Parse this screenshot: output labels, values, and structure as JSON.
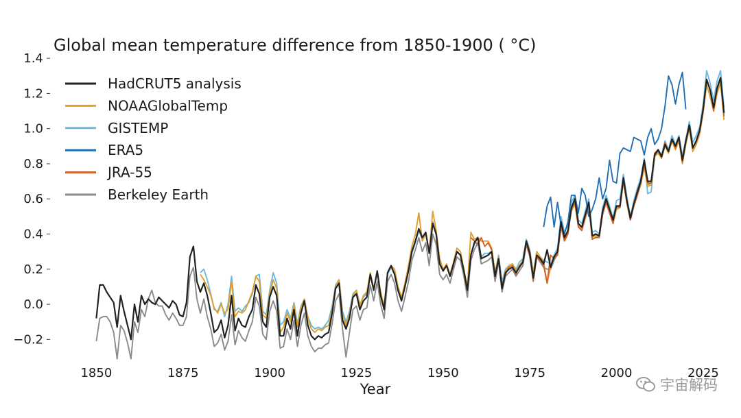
{
  "chart_data": {
    "type": "line",
    "title": "Global mean temperature difference from 1850-1900 ( °C)",
    "xlabel": "Year",
    "ylabel": "",
    "xlim": [
      1843,
      2027
    ],
    "ylim": [
      -0.3,
      1.42
    ],
    "xticks": [
      1850,
      1875,
      1900,
      1925,
      1950,
      1975,
      2000,
      2025
    ],
    "yticks": [
      -0.2,
      0.0,
      0.2,
      0.4,
      0.6,
      0.8,
      1.0,
      1.2,
      1.4
    ],
    "ytick_labels": [
      "−0.2",
      "0.0",
      "0.2",
      "0.4",
      "0.6",
      "0.8",
      "1.0",
      "1.2",
      "1.4"
    ],
    "legend_position": "top-left",
    "series": [
      {
        "name": "HadCRUT5 analysis",
        "color": "#222222",
        "x_start": 1850,
        "values": [
          -0.08,
          0.11,
          0.11,
          0.07,
          0.04,
          0.01,
          -0.13,
          0.05,
          -0.04,
          -0.12,
          -0.2,
          0.0,
          -0.1,
          0.05,
          0.0,
          0.03,
          0.01,
          0.0,
          0.04,
          0.02,
          0.0,
          -0.02,
          0.02,
          0.0,
          -0.06,
          -0.07,
          0.01,
          0.27,
          0.33,
          0.13,
          0.07,
          0.12,
          0.05,
          -0.05,
          -0.16,
          -0.14,
          -0.09,
          -0.19,
          -0.12,
          0.05,
          -0.15,
          -0.08,
          -0.12,
          -0.13,
          -0.07,
          -0.03,
          0.11,
          0.06,
          -0.1,
          -0.13,
          0.04,
          0.1,
          0.05,
          -0.18,
          -0.18,
          -0.08,
          -0.14,
          -0.03,
          -0.18,
          -0.05,
          0.02,
          -0.12,
          -0.18,
          -0.2,
          -0.18,
          -0.19,
          -0.17,
          -0.16,
          -0.05,
          0.09,
          0.12,
          -0.09,
          -0.14,
          -0.08,
          0.04,
          0.06,
          -0.03,
          0.02,
          0.04,
          0.17,
          0.08,
          0.19,
          0.05,
          -0.03,
          0.18,
          0.22,
          0.17,
          0.08,
          0.02,
          0.1,
          0.19,
          0.3,
          0.36,
          0.43,
          0.38,
          0.41,
          0.29,
          0.46,
          0.4,
          0.23,
          0.19,
          0.22,
          0.16,
          0.23,
          0.3,
          0.28,
          0.19,
          0.08,
          0.28,
          0.35,
          0.38,
          0.26,
          0.27,
          0.28,
          0.3,
          0.16,
          0.26,
          0.09,
          0.18,
          0.2,
          0.21,
          0.18,
          0.21,
          0.24,
          0.36,
          0.29,
          0.15,
          0.28,
          0.26,
          0.23,
          0.31,
          0.21,
          0.27,
          0.3,
          0.47,
          0.38,
          0.42,
          0.55,
          0.6,
          0.46,
          0.44,
          0.51,
          0.58,
          0.39,
          0.4,
          0.39,
          0.53,
          0.6,
          0.54,
          0.48,
          0.56,
          0.56,
          0.72,
          0.59,
          0.49,
          0.57,
          0.64,
          0.7,
          0.82,
          0.7,
          0.7,
          0.85,
          0.88,
          0.84,
          0.91,
          0.87,
          0.94,
          0.9,
          0.95,
          0.82,
          0.93,
          1.02,
          0.89,
          0.93,
          0.99,
          1.11,
          1.28,
          1.22,
          1.12,
          1.23,
          1.29,
          1.09
        ]
      },
      {
        "name": "NOAAGlobalTemp",
        "color": "#e0a02a",
        "x_start": 1880,
        "values": [
          0.17,
          0.14,
          0.1,
          0.05,
          -0.02,
          -0.05,
          0.0,
          -0.05,
          -0.03,
          0.13,
          -0.07,
          -0.04,
          -0.05,
          -0.03,
          0.02,
          0.07,
          0.16,
          0.13,
          -0.06,
          -0.08,
          0.06,
          0.14,
          0.09,
          -0.16,
          -0.13,
          -0.05,
          -0.1,
          0.0,
          -0.13,
          -0.02,
          0.03,
          -0.08,
          -0.14,
          -0.16,
          -0.14,
          -0.15,
          -0.13,
          -0.12,
          -0.03,
          0.1,
          0.14,
          -0.06,
          -0.12,
          -0.06,
          0.05,
          0.08,
          -0.01,
          0.05,
          0.07,
          0.18,
          0.09,
          0.19,
          0.07,
          -0.01,
          0.18,
          0.22,
          0.2,
          0.1,
          0.04,
          0.12,
          0.22,
          0.33,
          0.4,
          0.52,
          0.36,
          0.4,
          0.3,
          0.53,
          0.42,
          0.26,
          0.2,
          0.23,
          0.17,
          0.24,
          0.32,
          0.3,
          0.2,
          0.1,
          0.41,
          0.37,
          0.38,
          0.36,
          0.36,
          0.36,
          0.32,
          0.18,
          0.27,
          0.1,
          0.19,
          0.22,
          0.23,
          0.19,
          0.22,
          0.25,
          0.36,
          0.3,
          0.17,
          0.3,
          0.27,
          0.24,
          0.12,
          0.21,
          0.26,
          0.29,
          0.45,
          0.37,
          0.41,
          0.53,
          0.57,
          0.45,
          0.43,
          0.5,
          0.56,
          0.38,
          0.39,
          0.38,
          0.52,
          0.58,
          0.52,
          0.46,
          0.54,
          0.55,
          0.7,
          0.57,
          0.48,
          0.56,
          0.62,
          0.68,
          0.78,
          0.67,
          0.68,
          0.84,
          0.86,
          0.83,
          0.9,
          0.86,
          0.93,
          0.88,
          0.93,
          0.8,
          0.91,
          1.0,
          0.87,
          0.91,
          0.97,
          1.09,
          1.25,
          1.18,
          1.1,
          1.2,
          1.26,
          1.05
        ]
      },
      {
        "name": "GISTEMP",
        "color": "#6bb8e0",
        "x_start": 1880,
        "values": [
          0.18,
          0.2,
          0.14,
          0.06,
          -0.03,
          -0.04,
          0.01,
          -0.07,
          0.0,
          0.16,
          -0.04,
          -0.02,
          -0.04,
          -0.01,
          0.01,
          0.06,
          0.16,
          0.17,
          -0.04,
          -0.06,
          0.08,
          0.18,
          0.12,
          -0.12,
          -0.1,
          -0.03,
          -0.08,
          0.01,
          -0.11,
          -0.01,
          0.03,
          -0.07,
          -0.12,
          -0.14,
          -0.13,
          -0.14,
          -0.12,
          -0.09,
          -0.01,
          0.11,
          0.14,
          -0.04,
          -0.1,
          -0.04,
          0.06,
          0.08,
          0.0,
          0.04,
          0.06,
          0.17,
          0.09,
          0.18,
          0.06,
          -0.02,
          0.17,
          0.21,
          0.17,
          0.08,
          0.02,
          0.1,
          0.19,
          0.29,
          0.35,
          0.42,
          0.37,
          0.41,
          0.29,
          0.47,
          0.4,
          0.23,
          0.19,
          0.22,
          0.16,
          0.23,
          0.3,
          0.28,
          0.19,
          0.08,
          0.28,
          0.34,
          0.38,
          0.27,
          0.29,
          0.29,
          0.3,
          0.18,
          0.28,
          0.13,
          0.2,
          0.22,
          0.23,
          0.2,
          0.24,
          0.26,
          0.37,
          0.31,
          0.18,
          0.3,
          0.27,
          0.25,
          0.24,
          0.23,
          0.28,
          0.32,
          0.5,
          0.41,
          0.45,
          0.58,
          0.62,
          0.48,
          0.46,
          0.53,
          0.6,
          0.41,
          0.42,
          0.4,
          0.55,
          0.62,
          0.56,
          0.49,
          0.59,
          0.6,
          0.74,
          0.61,
          0.5,
          0.59,
          0.66,
          0.72,
          0.83,
          0.63,
          0.64,
          0.84,
          0.88,
          0.85,
          0.93,
          0.88,
          0.96,
          0.91,
          0.96,
          0.84,
          0.94,
          1.04,
          0.92,
          0.96,
          1.01,
          1.14,
          1.33,
          1.26,
          1.16,
          1.27,
          1.33,
          1.12
        ]
      },
      {
        "name": "ERA5",
        "color": "#1f6fb5",
        "x_start": 1979,
        "values": [
          0.44,
          0.56,
          0.61,
          0.44,
          0.58,
          0.45,
          0.4,
          0.47,
          0.62,
          0.62,
          0.52,
          0.66,
          0.62,
          0.5,
          0.54,
          0.6,
          0.72,
          0.6,
          0.66,
          0.82,
          0.7,
          0.69,
          0.86,
          0.89,
          0.88,
          0.87,
          0.95,
          0.94,
          0.93,
          0.85,
          0.95,
          1.0,
          0.91,
          0.94,
          1.0,
          1.13,
          1.3,
          1.25,
          1.14,
          1.25,
          1.32,
          1.11
        ]
      },
      {
        "name": "JRA-55",
        "color": "#d0622a",
        "x_start": 1958,
        "values": [
          0.38,
          0.36,
          0.34,
          0.38,
          0.33,
          0.35,
          0.31,
          0.16,
          0.26,
          0.11,
          0.17,
          0.21,
          0.22,
          0.17,
          0.22,
          0.24,
          0.34,
          0.28,
          0.14,
          0.27,
          0.25,
          0.22,
          0.12,
          0.28,
          0.26,
          0.28,
          0.44,
          0.36,
          0.4,
          0.54,
          0.58,
          0.44,
          0.42,
          0.49,
          0.56,
          0.37,
          0.38,
          0.38,
          0.51,
          0.58,
          0.52,
          0.46,
          0.56,
          0.55,
          0.7,
          0.58,
          0.48,
          0.56,
          0.62,
          0.69,
          0.8,
          0.69,
          0.69,
          0.86,
          0.88,
          0.84,
          0.92,
          0.87,
          0.94,
          0.89,
          0.95,
          0.81,
          0.92,
          1.01,
          0.89,
          0.93,
          0.99,
          1.12,
          1.28,
          1.22,
          1.1,
          1.22,
          1.29,
          1.07
        ]
      },
      {
        "name": "Berkeley Earth",
        "color": "#8a8a8a",
        "x_start": 1850,
        "values": [
          -0.21,
          -0.08,
          -0.07,
          -0.07,
          -0.1,
          -0.16,
          -0.31,
          -0.12,
          -0.15,
          -0.22,
          -0.31,
          -0.1,
          -0.16,
          -0.03,
          -0.07,
          0.03,
          0.08,
          0.01,
          -0.01,
          -0.01,
          -0.06,
          -0.09,
          -0.05,
          -0.08,
          -0.12,
          -0.12,
          -0.07,
          0.16,
          0.21,
          0.03,
          -0.05,
          0.03,
          -0.07,
          -0.14,
          -0.24,
          -0.22,
          -0.17,
          -0.26,
          -0.21,
          -0.06,
          -0.23,
          -0.15,
          -0.19,
          -0.21,
          -0.15,
          -0.1,
          0.04,
          -0.01,
          -0.17,
          -0.2,
          -0.04,
          0.02,
          -0.04,
          -0.25,
          -0.24,
          -0.14,
          -0.2,
          -0.09,
          -0.24,
          -0.12,
          -0.05,
          -0.18,
          -0.24,
          -0.27,
          -0.25,
          -0.25,
          -0.23,
          -0.22,
          -0.11,
          0.02,
          0.06,
          -0.14,
          -0.3,
          -0.16,
          -0.03,
          -0.01,
          -0.09,
          -0.03,
          -0.02,
          0.11,
          0.02,
          0.13,
          0.0,
          -0.08,
          0.13,
          0.17,
          0.12,
          0.02,
          -0.04,
          0.04,
          0.13,
          0.25,
          0.31,
          0.38,
          0.3,
          0.35,
          0.22,
          0.4,
          0.34,
          0.17,
          0.14,
          0.17,
          0.12,
          0.2,
          0.27,
          0.25,
          0.16,
          0.04,
          0.25,
          0.31,
          0.35,
          0.23,
          0.24,
          0.25,
          0.27,
          0.13,
          0.24,
          0.07,
          0.16,
          0.18,
          0.2,
          0.16,
          0.19,
          0.22,
          0.34,
          0.27,
          0.13,
          0.27,
          0.24,
          0.21,
          0.2,
          0.2,
          0.25,
          0.29,
          0.46,
          0.37,
          0.41,
          0.54,
          0.59,
          0.45,
          0.43,
          0.5,
          0.57,
          0.38,
          0.4,
          0.38,
          0.52,
          0.59,
          0.53,
          0.47,
          0.55,
          0.56,
          0.71,
          0.58,
          0.48,
          0.56,
          0.63,
          0.69,
          0.8,
          0.68,
          0.69,
          0.85,
          0.87,
          0.84,
          0.91,
          0.87,
          0.94,
          0.89,
          0.95,
          0.82,
          0.92,
          1.01,
          0.89,
          0.93,
          0.99,
          1.11,
          1.28,
          1.22,
          1.11,
          1.23,
          1.29,
          1.09
        ]
      }
    ]
  },
  "watermark": {
    "icon": "wechat-icon",
    "text": "宇宙解码"
  }
}
